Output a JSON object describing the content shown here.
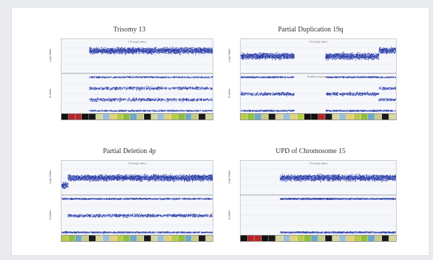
{
  "colors": {
    "point": "#2d3fa8",
    "point_light": "#8f9ad6",
    "ideogram": [
      "#b8cc4a",
      "#8fbf3c",
      "#6ea8c8",
      "#c9c98a",
      "#1a1a1a",
      "#d6d6a0",
      "#9bbfd9",
      "#e0d27a"
    ],
    "ideogram_red": "#b3262a",
    "ideogram_black": "#111111"
  },
  "panels": [
    {
      "title": "Trisomy 13",
      "subtitle_top": "CN (log2 ratio)",
      "subtitle_bottom": "B allele frequency",
      "ylabel_top": "Log2 Ratio",
      "ylabel_bottom": "B Allele",
      "ideogram_pattern": "trisomy"
    },
    {
      "title": "Partial Duplication 19q",
      "subtitle_top": "CN (log2 ratio)",
      "subtitle_bottom": "B allele frequency",
      "ylabel_top": "Log2 Ratio",
      "ylabel_bottom": "B Allele",
      "ideogram_pattern": "dup19q"
    },
    {
      "title": "Partial Deletion 4p",
      "subtitle_top": "CN (log2 ratio)",
      "subtitle_bottom": "B allele frequency",
      "ylabel_top": "Log2 Ratio",
      "ylabel_bottom": "B Allele",
      "ideogram_pattern": "del4p"
    },
    {
      "title": "UPD of Chromosome 15",
      "subtitle_top": "CN (log2 ratio)",
      "subtitle_bottom": "B allele frequency",
      "ylabel_top": "Log2 Ratio",
      "ylabel_bottom": "B Allele",
      "ideogram_pattern": "upd15"
    }
  ],
  "chart_data": [
    {
      "type": "scatter",
      "title": "Trisomy 13",
      "description_series": [
        {
          "name": "Log2 Ratio",
          "segments": [
            {
              "x": [
                0.0,
                0.18
              ],
              "y": null
            },
            {
              "x": [
                0.18,
                1.0
              ],
              "y": 0.6
            }
          ],
          "ylim": [
            -1.5,
            1.5
          ]
        },
        {
          "name": "B Allele",
          "segments": [
            {
              "x": [
                0.18,
                1.0
              ],
              "bands": [
                0.0,
                0.33,
                0.67,
                1.0
              ]
            }
          ],
          "ylim": [
            0,
            1
          ]
        }
      ]
    },
    {
      "type": "scatter",
      "title": "Partial Duplication 19q",
      "description_series": [
        {
          "name": "Log2 Ratio",
          "segments": [
            {
              "x": [
                0.0,
                0.34
              ],
              "y": 0.0
            },
            {
              "x": [
                0.34,
                0.54
              ],
              "y": null
            },
            {
              "x": [
                0.54,
                0.88
              ],
              "y": 0.0
            },
            {
              "x": [
                0.88,
                1.0
              ],
              "y": 0.6
            }
          ],
          "ylim": [
            -1.5,
            1.5
          ]
        },
        {
          "name": "B Allele",
          "segments": [
            {
              "x": [
                0.0,
                0.34
              ],
              "bands": [
                0.0,
                0.5,
                1.0
              ]
            },
            {
              "x": [
                0.54,
                0.88
              ],
              "bands": [
                0.0,
                0.5,
                1.0
              ]
            },
            {
              "x": [
                0.88,
                1.0
              ],
              "bands": [
                0.0,
                0.33,
                0.67,
                1.0
              ]
            }
          ],
          "ylim": [
            0,
            1
          ]
        }
      ]
    },
    {
      "type": "scatter",
      "title": "Partial Deletion 4p",
      "description_series": [
        {
          "name": "Log2 Ratio",
          "segments": [
            {
              "x": [
                0.0,
                0.04
              ],
              "y": -0.8
            },
            {
              "x": [
                0.04,
                1.0
              ],
              "y": 0.0
            }
          ],
          "ylim": [
            -1.5,
            1.5
          ]
        },
        {
          "name": "B Allele",
          "segments": [
            {
              "x": [
                0.0,
                0.04
              ],
              "bands": [
                0.0,
                1.0
              ]
            },
            {
              "x": [
                0.04,
                1.0
              ],
              "bands": [
                0.0,
                0.5,
                1.0
              ]
            }
          ],
          "ylim": [
            0,
            1
          ]
        }
      ]
    },
    {
      "type": "scatter",
      "title": "UPD of Chromosome 15",
      "description_series": [
        {
          "name": "Log2 Ratio",
          "segments": [
            {
              "x": [
                0.0,
                0.25
              ],
              "y": null
            },
            {
              "x": [
                0.25,
                1.0
              ],
              "y": 0.0
            }
          ],
          "ylim": [
            -1.5,
            1.5
          ]
        },
        {
          "name": "B Allele",
          "segments": [
            {
              "x": [
                0.25,
                1.0
              ],
              "bands": [
                0.0,
                1.0
              ]
            }
          ],
          "ylim": [
            0,
            1
          ]
        }
      ]
    }
  ]
}
